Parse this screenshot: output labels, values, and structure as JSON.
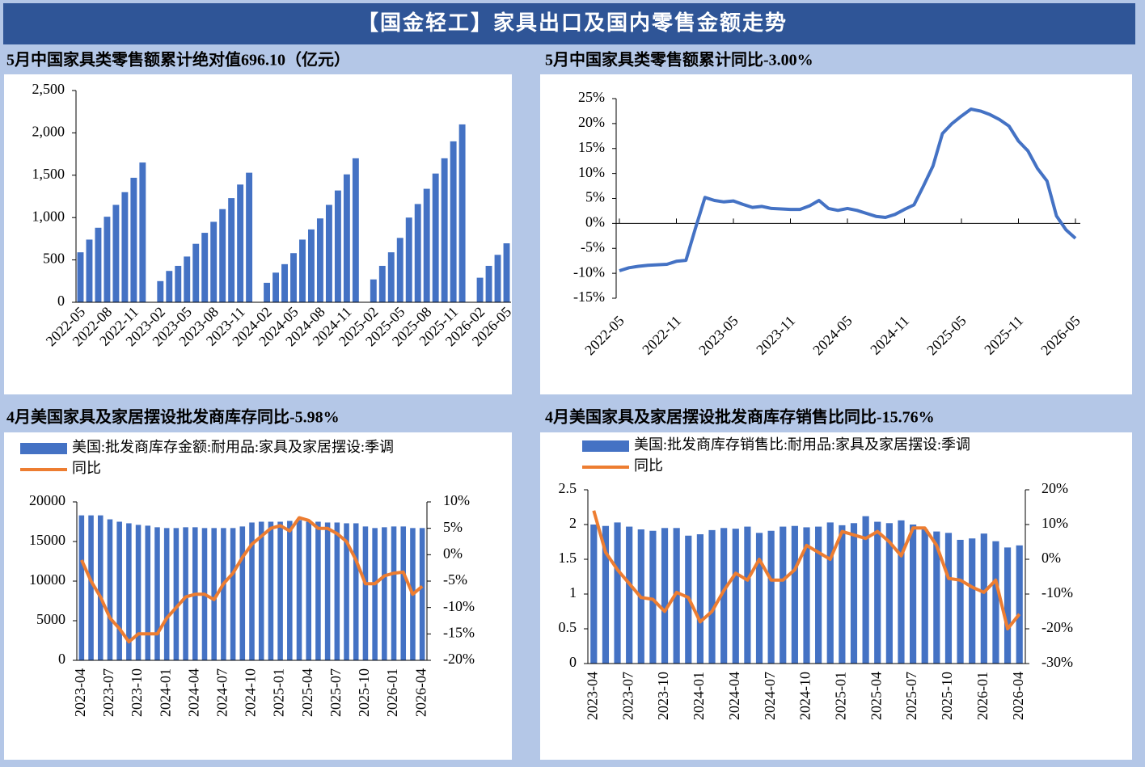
{
  "title": "【国金轻工】家具出口及国内零售金额走势",
  "chart_data": [
    {
      "type": "bar",
      "title": "5月中国家具类零售额累计绝对值696.10（亿元）",
      "categories": [
        "2022-05",
        null,
        null,
        "2022-08",
        null,
        null,
        "2022-11",
        null,
        null,
        "2023-02",
        null,
        null,
        "2023-05",
        null,
        null,
        "2023-08",
        null,
        null,
        "2023-11",
        null,
        null,
        "2024-02",
        null,
        null,
        "2024-05",
        null,
        null,
        "2024-08",
        null,
        null,
        "2024-11",
        null,
        null,
        "2025-02",
        null,
        null,
        "2025-05",
        null,
        null,
        "2025-08",
        null,
        null,
        "2025-11",
        null,
        null,
        "2026-02",
        null,
        null,
        "2026-05"
      ],
      "values": [
        590,
        740,
        880,
        1010,
        1150,
        1300,
        1470,
        1650,
        null,
        250,
        370,
        430,
        540,
        690,
        820,
        950,
        1100,
        1230,
        1390,
        1530,
        null,
        230,
        350,
        450,
        580,
        740,
        860,
        990,
        1150,
        1320,
        1510,
        1700,
        null,
        270,
        430,
        590,
        760,
        1000,
        1160,
        1340,
        1520,
        1700,
        1900,
        2100,
        null,
        290,
        430,
        560,
        696.1
      ],
      "color": "#4472c4",
      "ylim": [
        0,
        2500
      ],
      "yticks": [
        0,
        500,
        {
          "value": 1000,
          "label": "1,000"
        },
        {
          "value": 1500,
          "label": "1,500"
        },
        {
          "value": 2000,
          "label": "2,000"
        },
        {
          "value": 2500,
          "label": "2,500"
        }
      ]
    },
    {
      "type": "line",
      "title": "5月中国家具类零售额累计同比-3.00%",
      "categories": [
        "2022-05",
        null,
        null,
        null,
        null,
        null,
        "2022-11",
        null,
        null,
        null,
        null,
        null,
        "2023-05",
        null,
        null,
        null,
        null,
        null,
        "2023-11",
        null,
        null,
        null,
        null,
        null,
        "2024-05",
        null,
        null,
        null,
        null,
        null,
        "2024-11",
        null,
        null,
        null,
        null,
        null,
        "2025-05",
        null,
        null,
        null,
        null,
        null,
        "2025-11",
        null,
        null,
        null,
        null,
        null,
        "2026-05"
      ],
      "values": [
        -9.5,
        -8.9,
        -8.6,
        -8.4,
        -8.3,
        -8.2,
        -7.6,
        -7.4,
        -1,
        5.2,
        4.6,
        4.3,
        4.5,
        3.8,
        3.2,
        3.4,
        3.0,
        2.9,
        2.8,
        2.8,
        3.5,
        4.6,
        3.0,
        2.6,
        3.0,
        2.6,
        2.0,
        1.4,
        1.2,
        1.8,
        2.8,
        3.7,
        7.5,
        11.5,
        18,
        20,
        21.5,
        22.9,
        22.5,
        21.8,
        20.8,
        19.5,
        16.5,
        14.5,
        11,
        8.5,
        1.5,
        -1.3,
        -3.0
      ],
      "color": "#4472c4",
      "ylim": [
        -15,
        25
      ],
      "yticks": [
        {
          "value": -15,
          "label": "-15%"
        },
        {
          "value": -10,
          "label": "-10%"
        },
        {
          "value": -5,
          "label": "-5%"
        },
        {
          "value": 0,
          "label": "0%"
        },
        {
          "value": 5,
          "label": "5%"
        },
        {
          "value": 10,
          "label": "10%"
        },
        {
          "value": 15,
          "label": "15%"
        },
        {
          "value": 20,
          "label": "20%"
        },
        {
          "value": 25,
          "label": "25%"
        }
      ]
    },
    {
      "type": "combo",
      "title": "4月美国家具及家居摆设批发商库存同比-5.98%",
      "categories": [
        "2023-04",
        null,
        null,
        "2023-07",
        null,
        null,
        "2023-10",
        null,
        null,
        "2024-01",
        null,
        null,
        "2024-04",
        null,
        null,
        "2024-07",
        null,
        null,
        "2024-10",
        null,
        null,
        "2025-01",
        null,
        null,
        "2025-04",
        null,
        null,
        "2025-07",
        null,
        null,
        "2025-10",
        null,
        null,
        "2026-01",
        null,
        null,
        "2026-04"
      ],
      "series": [
        {
          "name": "美国:批发商库存金额:耐用品:家具及家居摆设:季调",
          "color": "#4472c4",
          "values": [
            18300,
            18300,
            18300,
            17800,
            17500,
            17300,
            17100,
            17000,
            16800,
            16700,
            16700,
            16800,
            16800,
            16700,
            16700,
            16700,
            16700,
            16900,
            17400,
            17500,
            17500,
            17500,
            17600,
            17700,
            17500,
            17500,
            17400,
            17400,
            17300,
            17300,
            16900,
            16700,
            16800,
            16900,
            16900,
            16700,
            16700
          ]
        },
        {
          "name": "同比",
          "color": "#ed7d31",
          "axis": "y2",
          "values": [
            -1,
            -5,
            -8,
            -12,
            -14,
            -16.5,
            -15,
            -15,
            -15,
            -12,
            -10,
            -8,
            -7.5,
            -7.5,
            -8.5,
            -5.5,
            -3.5,
            -0.5,
            2,
            3.5,
            5,
            5.5,
            4.5,
            7,
            6.5,
            5,
            5,
            4,
            2.5,
            -1,
            -5.5,
            -5.5,
            -4,
            -3.5,
            -3.3,
            -7.5,
            -5.98
          ]
        }
      ],
      "ylim": [
        0,
        20000
      ],
      "yticks": [
        0,
        5000,
        10000,
        15000,
        20000
      ],
      "y2lim": [
        -20,
        10
      ],
      "y2ticks": [
        {
          "value": -20,
          "label": "-20%"
        },
        {
          "value": -15,
          "label": "-15%"
        },
        {
          "value": -10,
          "label": "-10%"
        },
        {
          "value": -5,
          "label": "-5%"
        },
        {
          "value": 0,
          "label": "0%"
        },
        {
          "value": 5,
          "label": "5%"
        },
        {
          "value": 10,
          "label": "10%"
        }
      ]
    },
    {
      "type": "combo",
      "title": "4月美国家具及家居摆设批发商库存销售比同比-15.76%",
      "categories": [
        "2023-04",
        null,
        null,
        "2023-07",
        null,
        null,
        "2023-10",
        null,
        null,
        "2024-01",
        null,
        null,
        "2024-04",
        null,
        null,
        "2024-07",
        null,
        null,
        "2024-10",
        null,
        null,
        "2025-01",
        null,
        null,
        "2025-04",
        null,
        null,
        "2025-07",
        null,
        null,
        "2025-10",
        null,
        null,
        "2026-01",
        null,
        null,
        "2026-04"
      ],
      "series": [
        {
          "name": "美国:批发商库存销售比:耐用品:家具及家居摆设:季调",
          "color": "#4472c4",
          "values": [
            2.0,
            1.98,
            2.03,
            1.97,
            1.93,
            1.91,
            1.95,
            1.95,
            1.84,
            1.86,
            1.92,
            1.95,
            1.94,
            1.97,
            1.88,
            1.91,
            1.97,
            1.98,
            1.96,
            1.97,
            2.03,
            1.99,
            2.02,
            2.12,
            2.04,
            2.02,
            2.06,
            2.0,
            1.93,
            1.9,
            1.88,
            1.78,
            1.8,
            1.87,
            1.76,
            1.67,
            1.7
          ]
        },
        {
          "name": "同比",
          "color": "#ed7d31",
          "axis": "y2",
          "values": [
            14,
            2,
            -3,
            -7,
            -11,
            -11.5,
            -15,
            -9.5,
            -11,
            -18,
            -15,
            -9,
            -4,
            -6,
            0,
            -6,
            -6,
            -3,
            4,
            2,
            0,
            8,
            7,
            6,
            8,
            5,
            1,
            9,
            9,
            4,
            -5.5,
            -6,
            -8,
            -9.5,
            -6,
            -20,
            -15.76
          ]
        }
      ],
      "ylim": [
        0,
        2.5
      ],
      "yticks": [
        0,
        0.5,
        1,
        1.5,
        2,
        2.5
      ],
      "y2lim": [
        -30,
        20
      ],
      "y2ticks": [
        {
          "value": -30,
          "label": "-30%"
        },
        {
          "value": -20,
          "label": "-20%"
        },
        {
          "value": -10,
          "label": "-10%"
        },
        {
          "value": 0,
          "label": "0%"
        },
        {
          "value": 10,
          "label": "10%"
        },
        {
          "value": 20,
          "label": "20%"
        }
      ]
    }
  ]
}
